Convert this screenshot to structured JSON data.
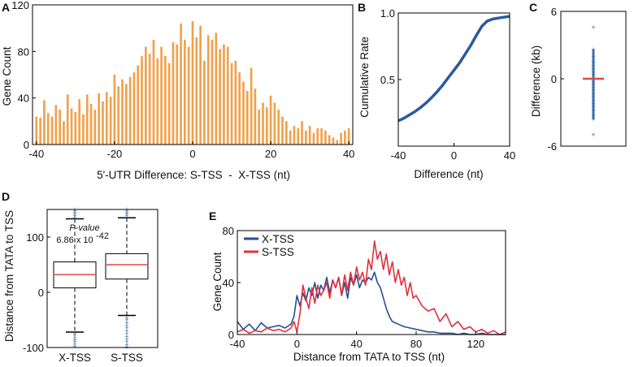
{
  "figure": {
    "panels": [
      "A",
      "B",
      "C",
      "D",
      "E"
    ]
  },
  "colors": {
    "bar": "#f2a04a",
    "cumulative": "#2b5a9c",
    "x_tss": "#25508f",
    "s_tss": "#e0303e",
    "median": "#e04848",
    "outlier": "#3d6db0"
  },
  "chart_data": [
    {
      "panel": "A",
      "type": "bar",
      "title": "",
      "xlabel": "5'-UTR Difference: S-TSS  -  X-TSS (nt)",
      "ylabel": "Gene Count",
      "xlim": [
        -41,
        41
      ],
      "ylim": [
        0,
        120
      ],
      "xticks": [
        "-40",
        "-20",
        "0",
        "20",
        "40"
      ],
      "yticks": [
        "0",
        "40",
        "80",
        "120"
      ],
      "x": [
        -40,
        -39,
        -38,
        -37,
        -36,
        -35,
        -34,
        -33,
        -32,
        -31,
        -30,
        -29,
        -28,
        -27,
        -26,
        -25,
        -24,
        -23,
        -22,
        -21,
        -20,
        -19,
        -18,
        -17,
        -16,
        -15,
        -14,
        -13,
        -12,
        -11,
        -10,
        -9,
        -8,
        -7,
        -6,
        -5,
        -4,
        -3,
        -2,
        -1,
        0,
        1,
        2,
        3,
        4,
        5,
        6,
        7,
        8,
        9,
        10,
        11,
        12,
        13,
        14,
        15,
        16,
        17,
        18,
        19,
        20,
        21,
        22,
        23,
        24,
        25,
        26,
        27,
        28,
        29,
        30,
        31,
        32,
        33,
        34,
        35,
        36,
        37,
        38,
        39,
        40
      ],
      "values": [
        24,
        23,
        38,
        27,
        24,
        34,
        30,
        20,
        43,
        31,
        28,
        39,
        26,
        43,
        35,
        30,
        44,
        37,
        45,
        41,
        60,
        50,
        56,
        52,
        58,
        62,
        68,
        76,
        84,
        78,
        90,
        74,
        84,
        76,
        70,
        88,
        86,
        104,
        90,
        84,
        106,
        92,
        102,
        72,
        94,
        90,
        96,
        82,
        86,
        84,
        70,
        72,
        62,
        54,
        46,
        66,
        48,
        30,
        36,
        32,
        42,
        36,
        30,
        24,
        20,
        12,
        16,
        14,
        20,
        12,
        16,
        10,
        14,
        14,
        12,
        8,
        6,
        4,
        10,
        12,
        14
      ]
    },
    {
      "panel": "B",
      "type": "line",
      "xlabel": "Difference (nt)",
      "ylabel": "Cumulative Rate",
      "xlim": [
        -40,
        40
      ],
      "ylim": [
        0,
        1.0
      ],
      "xticks": [
        "-40",
        "0",
        "40"
      ],
      "yticks": [
        "0.5",
        "1.0"
      ],
      "x": [
        -40,
        -36,
        -32,
        -28,
        -24,
        -20,
        -16,
        -12,
        -8,
        -4,
        0,
        4,
        8,
        12,
        16,
        20,
        24,
        28,
        32,
        36,
        40
      ],
      "y": [
        0.19,
        0.21,
        0.235,
        0.26,
        0.29,
        0.325,
        0.365,
        0.41,
        0.46,
        0.515,
        0.57,
        0.625,
        0.69,
        0.755,
        0.83,
        0.9,
        0.94,
        0.955,
        0.962,
        0.968,
        0.975
      ]
    },
    {
      "panel": "C",
      "type": "scatter",
      "xlabel": "",
      "ylabel": "Difference (kb)",
      "ylim": [
        -6,
        6
      ],
      "yticks": [
        "-6",
        "0",
        "6"
      ],
      "median": 0,
      "outliers": [
        4.6,
        2.6,
        2.0,
        1.5,
        1.2,
        0.9,
        0.6,
        0.4,
        -0.3,
        -0.5,
        -0.8,
        -1.0,
        -1.3,
        -1.6,
        -1.9,
        -2.2,
        -2.5,
        -2.8,
        -3.2,
        -3.6,
        -5.0
      ]
    },
    {
      "panel": "D",
      "type": "box",
      "xlabel": "",
      "ylabel": "Distance from TATA to TSS",
      "ylim": [
        -100,
        150
      ],
      "yticks": [
        "-100",
        "0",
        "100"
      ],
      "categories": [
        "X-TSS",
        "S-TSS"
      ],
      "boxes": [
        {
          "name": "X-TSS",
          "whisker_low": -72,
          "q1": 8,
          "median": 32,
          "q3": 55,
          "whisker_high": 133,
          "outliers_high": [
            136,
            139,
            142,
            145,
            148,
            150
          ],
          "outliers_low": [
            -75,
            -78,
            -82,
            -86,
            -90,
            -94,
            -98
          ]
        },
        {
          "name": "S-TSS",
          "whisker_low": -42,
          "q1": 24,
          "median": 50,
          "q3": 70,
          "whisker_high": 135,
          "outliers_high": [
            138,
            141,
            144,
            147,
            150
          ],
          "outliers_low": [
            -46,
            -50,
            -55,
            -60,
            -65,
            -70,
            -75,
            -80,
            -85,
            -90,
            -95,
            -99
          ]
        }
      ],
      "annotation": {
        "label": "P-value",
        "value": "6.86 x 10",
        "exponent": "-42"
      }
    },
    {
      "panel": "E",
      "type": "line",
      "xlabel": "Distance from TATA to TSS (nt)",
      "ylabel": "Gene Count",
      "xlim": [
        -40,
        140
      ],
      "ylim": [
        0,
        80
      ],
      "xticks": [
        "-40",
        "0",
        "40",
        "80",
        "120"
      ],
      "yticks": [
        "0",
        "40",
        "80"
      ],
      "series": [
        {
          "name": "X-TSS",
          "x": [
            -40,
            -36,
            -32,
            -28,
            -24,
            -20,
            -16,
            -12,
            -8,
            -4,
            -2,
            0,
            2,
            4,
            6,
            8,
            10,
            12,
            14,
            16,
            18,
            20,
            22,
            24,
            26,
            28,
            30,
            32,
            34,
            36,
            38,
            40,
            42,
            44,
            46,
            48,
            50,
            52,
            54,
            56,
            58,
            60,
            62,
            64,
            68,
            72,
            76,
            80,
            84,
            88,
            92,
            96,
            100,
            104,
            108,
            112,
            116,
            120,
            124,
            128,
            132,
            136,
            140
          ],
          "y": [
            10,
            4,
            8,
            3,
            9,
            5,
            6,
            7,
            5,
            8,
            14,
            30,
            22,
            32,
            26,
            36,
            30,
            40,
            28,
            38,
            34,
            44,
            32,
            42,
            36,
            44,
            30,
            40,
            28,
            44,
            38,
            46,
            36,
            42,
            40,
            44,
            42,
            48,
            40,
            36,
            28,
            20,
            14,
            10,
            8,
            6,
            5,
            4,
            3,
            2,
            2,
            1,
            1,
            1,
            0,
            1,
            0,
            0,
            1,
            0,
            0,
            0,
            0
          ]
        },
        {
          "name": "S-TSS",
          "x": [
            -40,
            -36,
            -32,
            -28,
            -24,
            -20,
            -16,
            -12,
            -8,
            -4,
            -2,
            0,
            2,
            4,
            6,
            8,
            10,
            12,
            14,
            16,
            18,
            20,
            22,
            24,
            26,
            28,
            30,
            32,
            34,
            36,
            38,
            40,
            42,
            44,
            46,
            48,
            50,
            52,
            54,
            56,
            58,
            60,
            62,
            64,
            66,
            68,
            70,
            72,
            74,
            76,
            78,
            80,
            84,
            88,
            92,
            96,
            100,
            104,
            108,
            112,
            116,
            120,
            124,
            128,
            132,
            136,
            140
          ],
          "y": [
            2,
            4,
            1,
            3,
            2,
            5,
            3,
            4,
            2,
            5,
            10,
            2,
            16,
            38,
            28,
            20,
            36,
            24,
            38,
            30,
            34,
            40,
            28,
            42,
            36,
            44,
            30,
            46,
            34,
            48,
            38,
            52,
            42,
            48,
            38,
            58,
            50,
            72,
            58,
            64,
            50,
            62,
            46,
            56,
            40,
            50,
            38,
            44,
            30,
            40,
            28,
            30,
            22,
            18,
            20,
            10,
            16,
            6,
            10,
            4,
            6,
            2,
            4,
            1,
            3,
            0,
            2
          ]
        }
      ],
      "legend": [
        "X-TSS",
        "S-TSS"
      ]
    }
  ]
}
